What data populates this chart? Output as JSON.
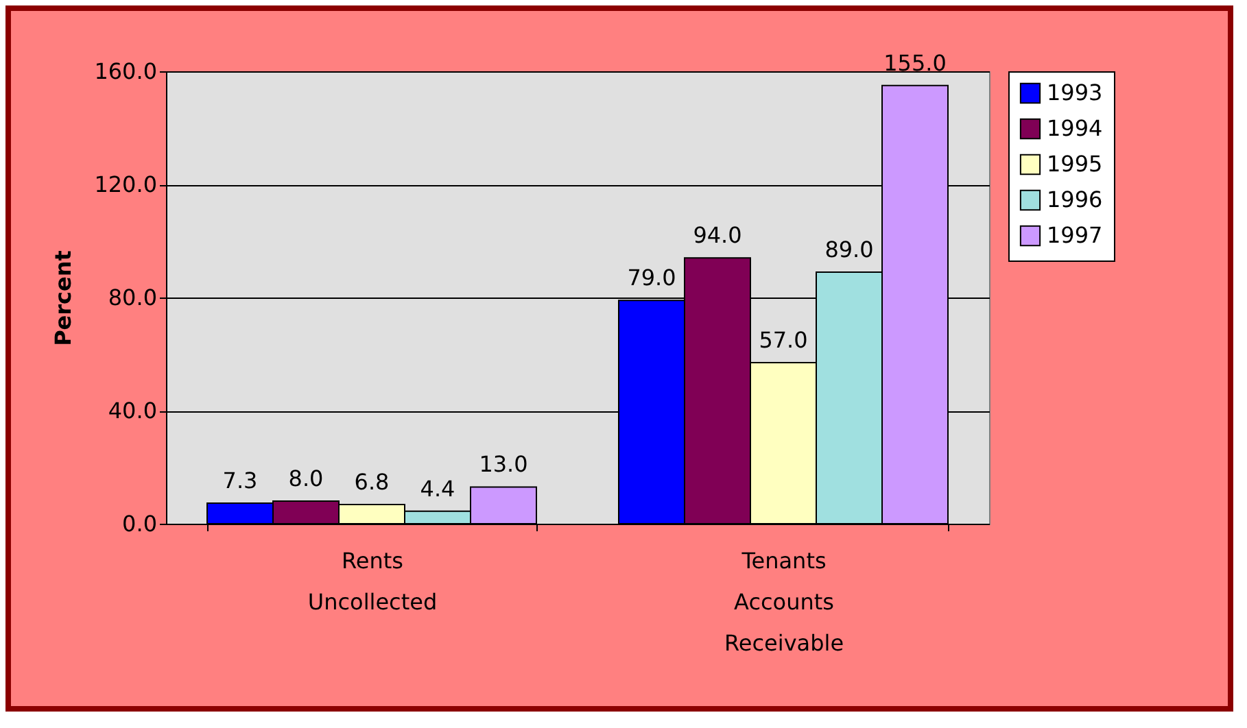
{
  "chart_data": {
    "type": "bar",
    "ylabel": "Percent",
    "categories": [
      "Rents Uncollected",
      "Tenants Accounts Receivable"
    ],
    "series": [
      {
        "name": "1993",
        "color": "#0000ff",
        "values": [
          7.3,
          79.0
        ],
        "value_labels": [
          "7.3",
          "79.0"
        ]
      },
      {
        "name": "1994",
        "color": "#800055",
        "values": [
          8.0,
          94.0
        ],
        "value_labels": [
          "8.0",
          "94.0"
        ]
      },
      {
        "name": "1995",
        "color": "#ffffc0",
        "values": [
          6.8,
          57.0
        ],
        "value_labels": [
          "6.8",
          "57.0"
        ]
      },
      {
        "name": "1996",
        "color": "#a0e0e0",
        "values": [
          4.4,
          89.0
        ],
        "value_labels": [
          "4.4",
          "89.0"
        ]
      },
      {
        "name": "1997",
        "color": "#cc99ff",
        "values": [
          13.0,
          155.0
        ],
        "value_labels": [
          "13.0",
          "155.0"
        ]
      }
    ],
    "ylim": [
      0,
      160
    ],
    "yticks": [
      {
        "value": 0,
        "label": "0.0"
      },
      {
        "value": 40,
        "label": "40.0"
      },
      {
        "value": 80,
        "label": "80.0"
      },
      {
        "value": 120,
        "label": "120.0"
      },
      {
        "value": 160,
        "label": "160.0"
      }
    ],
    "grid": "y",
    "legend": "right"
  }
}
